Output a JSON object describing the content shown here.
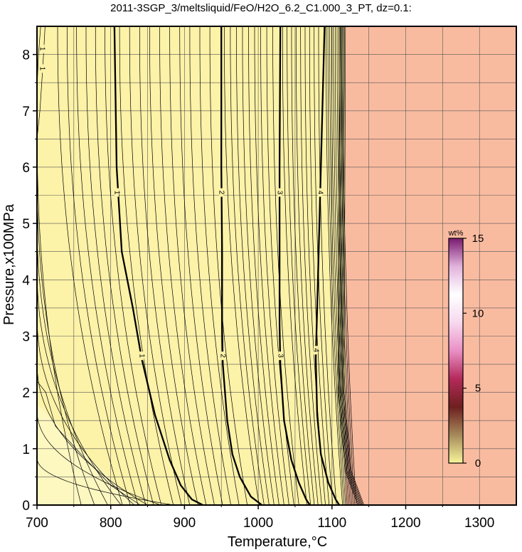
{
  "chart_data": {
    "type": "contour",
    "title": "2011-3SGP_3/meltsliquid/FeO/H2O_6.2_C1.000_3_PT, dz=0.1:",
    "xlabel": "Temperature,°C",
    "ylabel": "Pressure,x100MPa",
    "xlim": [
      700,
      1350
    ],
    "ylim": [
      0,
      8.5
    ],
    "x_ticks": [
      700,
      800,
      900,
      1000,
      1100,
      1200,
      1300
    ],
    "y_ticks": [
      0,
      1,
      2,
      3,
      4,
      5,
      6,
      7,
      8
    ],
    "x_grid": [
      750,
      850,
      950,
      1050,
      1150,
      1250
    ],
    "y_grid": [
      0.5,
      1.5,
      2.5,
      3.5,
      4.5,
      5.5,
      6.5,
      7.5
    ],
    "grid": true,
    "contour_interval": 0.1,
    "major_contours": [
      {
        "level": "1",
        "points": [
          [
            805,
            8.5
          ],
          [
            808,
            6.0
          ],
          [
            815,
            4.5
          ],
          [
            830,
            3.5
          ],
          [
            842,
            2.6
          ],
          [
            860,
            1.6
          ],
          [
            880,
            0.8
          ],
          [
            895,
            0.35
          ],
          [
            910,
            0.1
          ],
          [
            925,
            0
          ]
        ]
      },
      {
        "level": "2",
        "points": [
          [
            950,
            8.5
          ],
          [
            950,
            6.0
          ],
          [
            951,
            4.5
          ],
          [
            951,
            3.2
          ],
          [
            952,
            2.5
          ],
          [
            958,
            1.5
          ],
          [
            965,
            0.9
          ],
          [
            975,
            0.5
          ],
          [
            990,
            0.15
          ],
          [
            1005,
            0
          ]
        ]
      },
      {
        "level": "3",
        "points": [
          [
            1030,
            8.5
          ],
          [
            1029,
            6.0
          ],
          [
            1029,
            4.5
          ],
          [
            1029,
            3.2
          ],
          [
            1030,
            2.5
          ],
          [
            1035,
            1.5
          ],
          [
            1045,
            0.8
          ],
          [
            1055,
            0.4
          ],
          [
            1065,
            0.1
          ],
          [
            1070,
            0
          ]
        ]
      },
      {
        "level": "4",
        "points": [
          [
            1090,
            8.5
          ],
          [
            1085,
            6.0
          ],
          [
            1082,
            4.5
          ],
          [
            1080,
            3.5
          ],
          [
            1078,
            2.6
          ],
          [
            1080,
            1.6
          ],
          [
            1085,
            0.9
          ],
          [
            1095,
            0.4
          ],
          [
            1105,
            0.1
          ],
          [
            1110,
            0
          ]
        ]
      }
    ],
    "contour_labels": [
      {
        "text": "1",
        "x": 808,
        "y": 5.55
      },
      {
        "text": "2",
        "x": 950,
        "y": 5.55
      },
      {
        "text": "3",
        "x": 1029,
        "y": 5.55
      },
      {
        "text": "4",
        "x": 1084,
        "y": 5.55
      },
      {
        "text": "1",
        "x": 842,
        "y": 2.65
      },
      {
        "text": "2",
        "x": 952,
        "y": 2.65
      },
      {
        "text": "3",
        "x": 1030,
        "y": 2.65
      },
      {
        "text": "4",
        "x": 1078,
        "y": 2.75
      },
      {
        "text": "1",
        "x": 707,
        "y": 8.1
      },
      {
        "text": "1",
        "x": 707,
        "y": 7.75
      }
    ],
    "region_colors": {
      "low": "#fcf2a8",
      "high": "#f9bba0"
    },
    "region_boundary_t": 1118,
    "colorbar": {
      "unit": "wt%",
      "ticks": [
        0,
        5,
        10,
        15
      ],
      "range": [
        0,
        15
      ],
      "colors": [
        "#f8f59a",
        "#a58a5a",
        "#6e1f1f",
        "#b42a5a",
        "#e98fc6",
        "#f7d9ee",
        "#ffffff",
        "#e2b3dd",
        "#7a1a70"
      ]
    }
  }
}
